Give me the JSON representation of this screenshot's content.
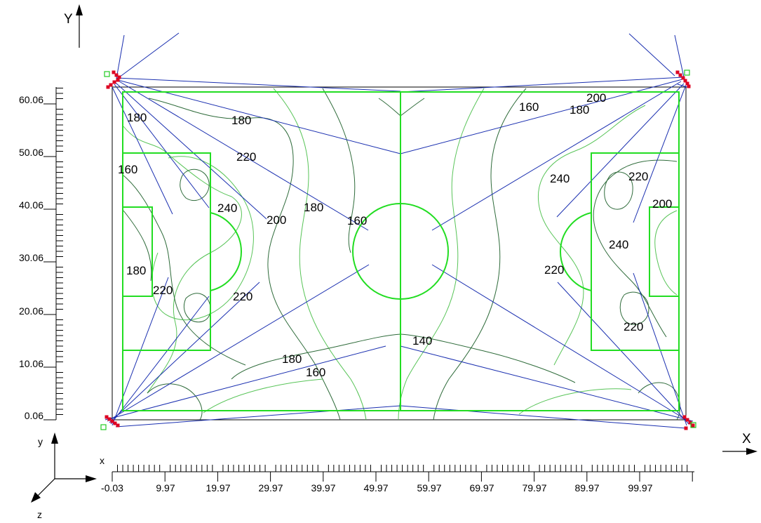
{
  "axes": {
    "x_name": "X",
    "y_name": "Y",
    "triad": {
      "x": "x",
      "y": "y",
      "z": "z"
    }
  },
  "x_ticks": [
    "-0.03",
    "9.97",
    "19.97",
    "29.97",
    "39.97",
    "49.97",
    "59.97",
    "69.97",
    "79.97",
    "89.97",
    "99.97"
  ],
  "y_ticks": [
    "0.06",
    "10.06",
    "20.06",
    "30.06",
    "40.06",
    "50.06",
    "60.06"
  ],
  "contour_labels": [
    "180",
    "160",
    "180",
    "220",
    "240",
    "200",
    "180",
    "160",
    "180",
    "220",
    "220",
    "180",
    "160",
    "140",
    "160",
    "180",
    "200",
    "240",
    "220",
    "200",
    "240",
    "220",
    "220"
  ],
  "colors": {
    "field": "#22dd22",
    "contour_dark": "#2e6b3a",
    "contour_light": "#58c458",
    "beam": "#1a2fb0",
    "luminaire": "#dd0022",
    "pole": "#22cc22"
  }
}
